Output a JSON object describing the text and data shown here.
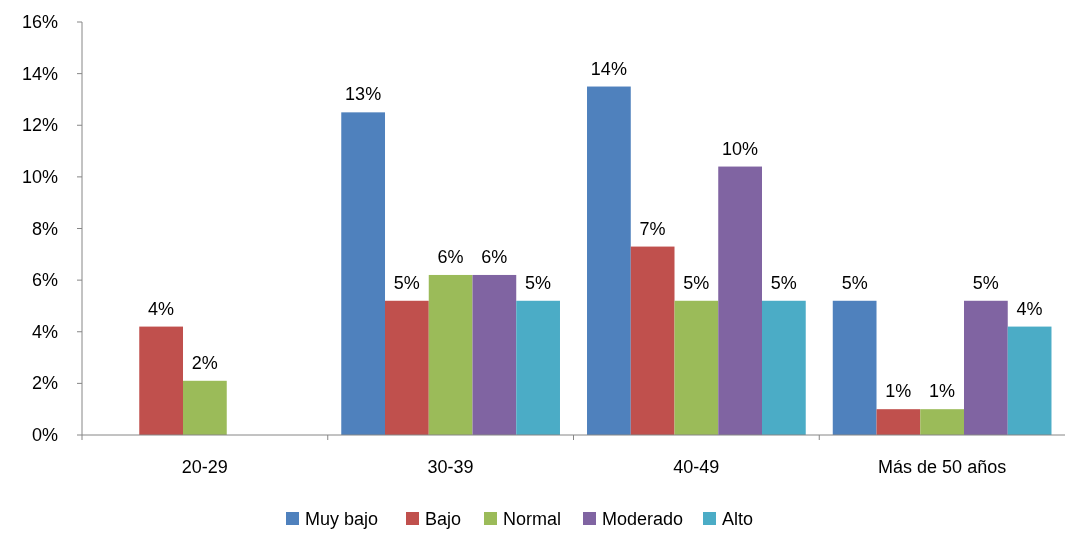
{
  "chart_data": {
    "type": "bar",
    "categories": [
      "20-29",
      "30-39",
      "40-49",
      "Más de 50 años"
    ],
    "series": [
      {
        "name": "Muy bajo",
        "color": "#4f81bd",
        "values": [
          null,
          12.5,
          13.5,
          5.2
        ],
        "value_labels": [
          null,
          "13%",
          "14%",
          "5%"
        ]
      },
      {
        "name": "Bajo",
        "color": "#c0504d",
        "values": [
          4.2,
          5.2,
          7.3,
          1.0
        ],
        "value_labels": [
          "4%",
          "5%",
          "7%",
          "1%"
        ]
      },
      {
        "name": "Normal",
        "color": "#9bbb59",
        "values": [
          2.1,
          6.2,
          5.2,
          1.0
        ],
        "value_labels": [
          "2%",
          "6%",
          "5%",
          "1%"
        ]
      },
      {
        "name": "Moderado",
        "color": "#8064a2",
        "values": [
          null,
          6.2,
          10.4,
          5.2
        ],
        "value_labels": [
          null,
          "6%",
          "10%",
          "5%"
        ]
      },
      {
        "name": "Alto",
        "color": "#4bacc6",
        "values": [
          null,
          5.2,
          5.2,
          4.2
        ],
        "value_labels": [
          null,
          "5%",
          "5%",
          "4%"
        ]
      }
    ],
    "ylim": [
      0,
      16
    ],
    "yticks": [
      {
        "value": 0,
        "label": "0%"
      },
      {
        "value": 2,
        "label": "2%"
      },
      {
        "value": 4,
        "label": "4%"
      },
      {
        "value": 6,
        "label": "6%"
      },
      {
        "value": 8,
        "label": "8%"
      },
      {
        "value": 10,
        "label": "10%"
      },
      {
        "value": 12,
        "label": "12%"
      },
      {
        "value": 14,
        "label": "14%"
      },
      {
        "value": 16,
        "label": "16%"
      }
    ],
    "grid": false,
    "legend": "bottom"
  }
}
